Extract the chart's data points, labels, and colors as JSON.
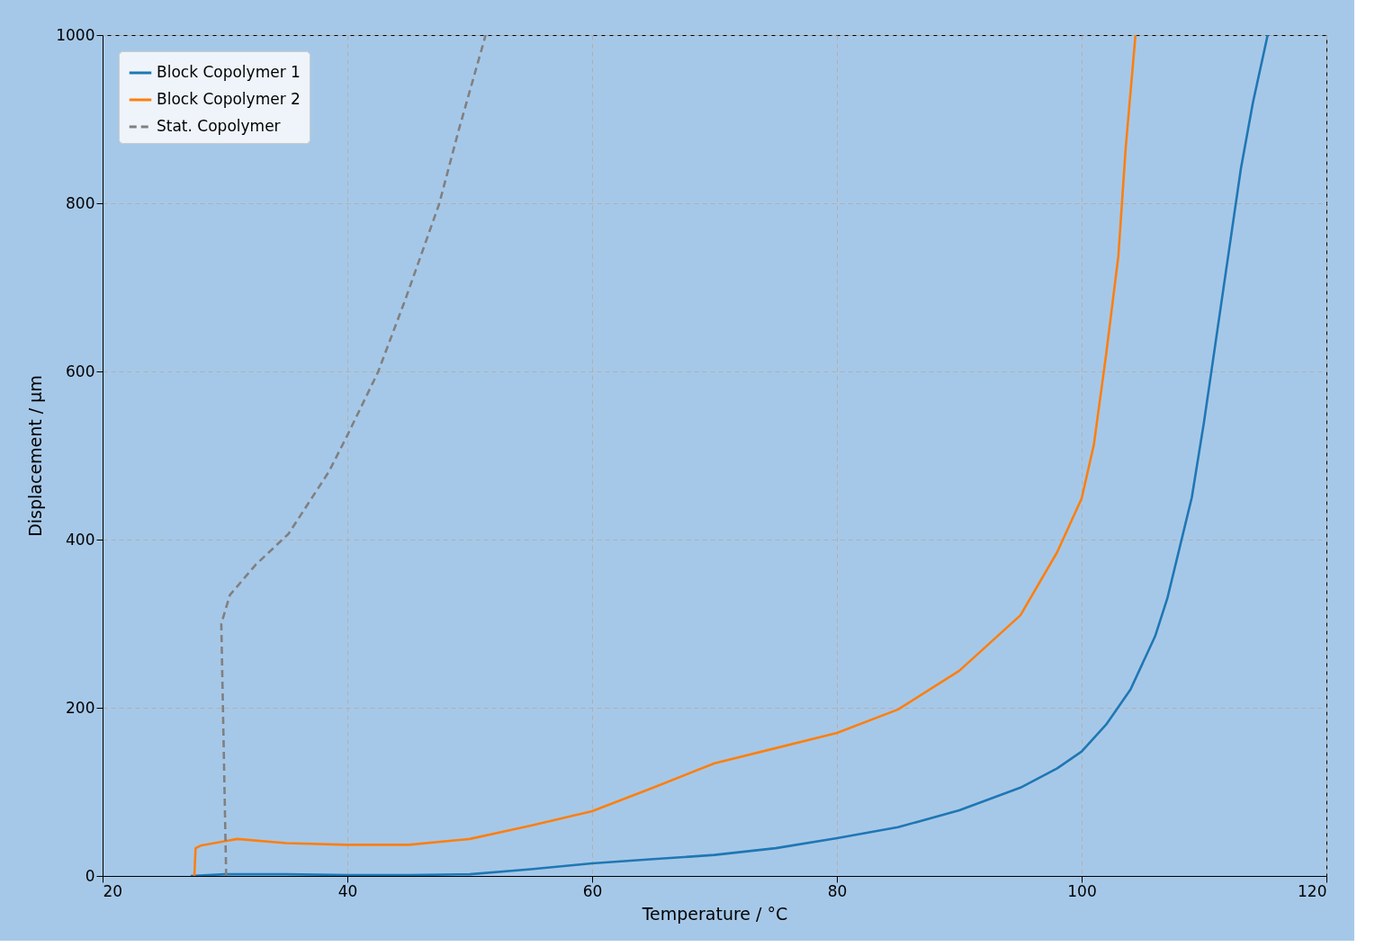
{
  "chart_data": {
    "type": "line",
    "xlabel": "Temperature / °C",
    "ylabel": "Displacement / µm",
    "xlim": [
      20,
      120
    ],
    "ylim": [
      0,
      1000
    ],
    "xticks": [
      20,
      40,
      60,
      80,
      100,
      120
    ],
    "yticks": [
      0,
      200,
      400,
      600,
      800,
      1000
    ],
    "grid": true,
    "legend": "top left",
    "marker": "none",
    "series": [
      {
        "name": "Block Copolymer 1",
        "color": "#1f77b4",
        "line_style": "solid",
        "x": [
          27.2,
          30,
          35,
          40,
          45,
          50,
          55,
          60,
          65,
          70,
          75,
          80,
          85,
          90,
          95,
          98,
          100,
          102,
          104,
          106,
          107,
          108,
          109,
          110,
          111,
          112,
          113,
          114,
          115.2
        ],
        "values": [
          0,
          2,
          2,
          1,
          1,
          2,
          8,
          15,
          20,
          25,
          33,
          45,
          58,
          78,
          105,
          128,
          148,
          180,
          222,
          285,
          330,
          390,
          450,
          540,
          640,
          740,
          840,
          920,
          1000
        ]
      },
      {
        "name": "Block Copolymer 2",
        "color": "#ff7f0e",
        "line_style": "solid",
        "x": [
          27.5,
          27.6,
          28,
          31,
          35,
          40,
          45,
          50,
          55,
          60,
          65,
          70,
          75,
          80,
          85,
          90,
          95,
          98,
          100,
          101,
          102,
          103,
          103.6,
          104.4
        ],
        "values": [
          0,
          33,
          36,
          44,
          39,
          37,
          37,
          44,
          60,
          77,
          105,
          134,
          152,
          170,
          198,
          244,
          310,
          385,
          449,
          513,
          620,
          737,
          866,
          1000
        ]
      },
      {
        "name": "Stat. Copolymer",
        "color": "#808080",
        "line_style": "dashed",
        "x": [
          30.1,
          29.7,
          30.4,
          32.5,
          35.2,
          38.5,
          40,
          42.5,
          44.7,
          47.5,
          49.1,
          51.3
        ],
        "values": [
          0,
          300,
          334,
          370,
          407,
          481,
          524,
          599,
          684,
          799,
          887,
          1000
        ]
      }
    ]
  }
}
